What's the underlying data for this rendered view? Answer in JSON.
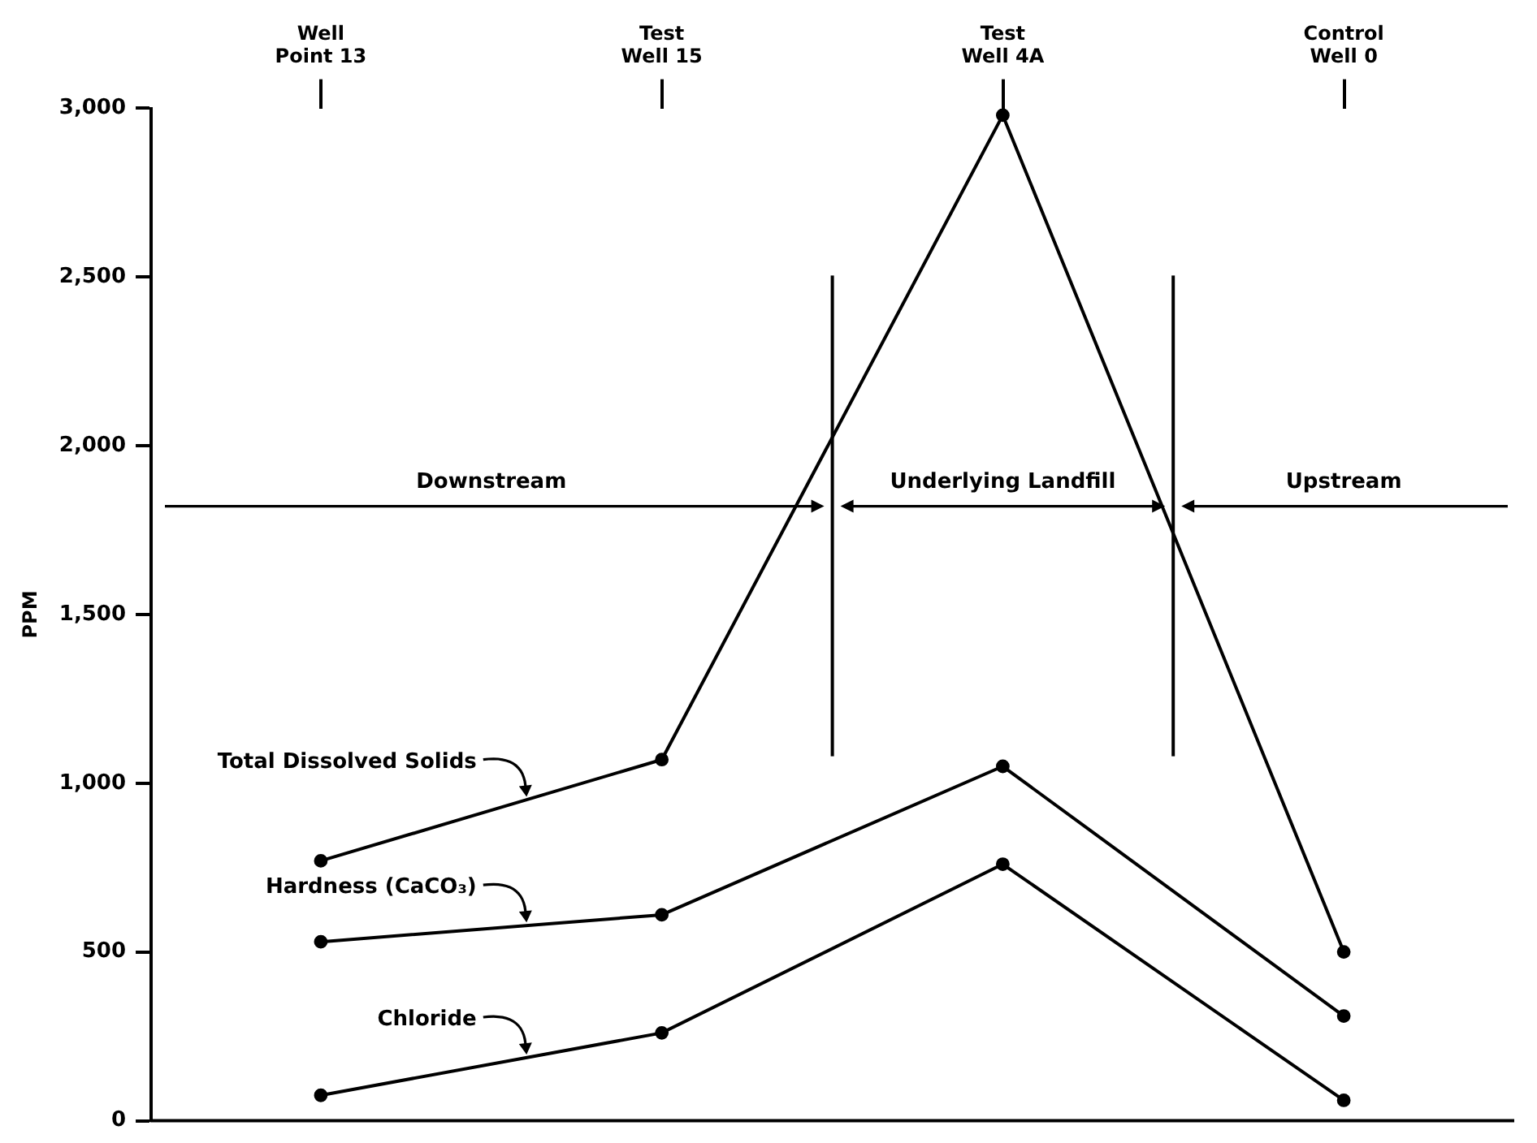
{
  "chart_data": {
    "type": "line",
    "ylabel": "PPM",
    "categories": [
      "Well Point 13",
      "Test Well 15",
      "Test Well 4A",
      "Control Well 0"
    ],
    "series": [
      {
        "name": "Total Dissolved Solids",
        "color": "#000000",
        "values": [
          770,
          1070,
          2980,
          500
        ]
      },
      {
        "name": "Hardness (CaCO₃)",
        "color": "#000000",
        "values": [
          530,
          610,
          1050,
          310
        ]
      },
      {
        "name": "Chloride",
        "color": "#000000",
        "values": [
          75,
          260,
          760,
          60
        ]
      }
    ],
    "ylim": [
      0,
      3000
    ],
    "yticks": [
      0,
      500,
      {
        "value": 1000,
        "label": "1,000"
      },
      {
        "value": 1500,
        "label": "1,500"
      },
      {
        "value": 2000,
        "label": "2,000"
      },
      {
        "value": 2500,
        "label": "2,500"
      },
      {
        "value": 3000,
        "label": "3,000"
      }
    ],
    "annotations": [
      "Downstream",
      "Underlying Landfill",
      "Upstream"
    ],
    "grid": false,
    "legend": "left",
    "marker": "circle",
    "line_style": "solid"
  }
}
